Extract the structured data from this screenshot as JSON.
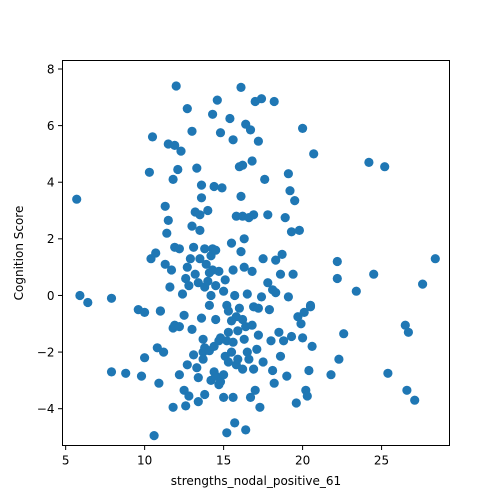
{
  "chart_data": {
    "type": "scatter",
    "title": "",
    "xlabel": "strengths_nodal_positive_61",
    "ylabel": "Cognition Score",
    "xlim": [
      4.8,
      29.3
    ],
    "ylim": [
      -5.3,
      8.3
    ],
    "x_ticks": [
      5,
      10,
      15,
      20,
      25
    ],
    "y_ticks": [
      -4,
      -2,
      0,
      2,
      4,
      6,
      8
    ],
    "grid": false,
    "legend": "none",
    "marker_color": "#1f77b4",
    "points": [
      [
        5.7,
        3.4
      ],
      [
        5.9,
        0.0
      ],
      [
        6.4,
        -0.25
      ],
      [
        7.9,
        -0.1
      ],
      [
        7.9,
        -2.7
      ],
      [
        8.8,
        -2.75
      ],
      [
        9.6,
        -0.5
      ],
      [
        9.8,
        -2.85
      ],
      [
        10.0,
        -0.6
      ],
      [
        10.0,
        -2.2
      ],
      [
        10.3,
        4.35
      ],
      [
        10.4,
        1.3
      ],
      [
        10.5,
        5.6
      ],
      [
        10.6,
        -4.95
      ],
      [
        10.7,
        1.5
      ],
      [
        10.8,
        -1.85
      ],
      [
        10.9,
        -3.1
      ],
      [
        11.0,
        -0.55
      ],
      [
        11.0,
        -0.55
      ],
      [
        11.2,
        -2.0
      ],
      [
        11.3,
        1.1
      ],
      [
        11.3,
        3.15
      ],
      [
        11.4,
        2.2
      ],
      [
        11.5,
        2.65
      ],
      [
        11.5,
        5.35
      ],
      [
        11.6,
        0.3
      ],
      [
        11.7,
        0.9
      ],
      [
        11.8,
        -1.15
      ],
      [
        11.8,
        4.1
      ],
      [
        11.8,
        -3.95
      ],
      [
        11.9,
        5.3
      ],
      [
        11.9,
        1.7
      ],
      [
        11.9,
        -1.05
      ],
      [
        12.0,
        7.4
      ],
      [
        12.1,
        4.45
      ],
      [
        12.2,
        1.65
      ],
      [
        12.2,
        -1.1
      ],
      [
        12.2,
        -2.8
      ],
      [
        12.3,
        5.1
      ],
      [
        12.4,
        0.05
      ],
      [
        12.5,
        -0.7
      ],
      [
        12.5,
        -3.35
      ],
      [
        12.6,
        -3.9
      ],
      [
        12.6,
        0.6
      ],
      [
        12.7,
        6.6
      ],
      [
        12.7,
        1.0
      ],
      [
        12.7,
        -2.45
      ],
      [
        12.8,
        0.35
      ],
      [
        12.8,
        -3.55
      ],
      [
        12.9,
        1.3
      ],
      [
        13.0,
        2.45
      ],
      [
        13.0,
        5.8
      ],
      [
        13.0,
        -1.2
      ],
      [
        13.1,
        1.7
      ],
      [
        13.1,
        -2.1
      ],
      [
        13.2,
        0.75
      ],
      [
        13.2,
        2.95
      ],
      [
        13.3,
        4.5
      ],
      [
        13.3,
        -2.55
      ],
      [
        13.4,
        -3.75
      ],
      [
        13.4,
        -2.9
      ],
      [
        13.4,
        0.45
      ],
      [
        13.5,
        2.3
      ],
      [
        13.5,
        2.85
      ],
      [
        13.5,
        1.3
      ],
      [
        13.6,
        3.9
      ],
      [
        13.6,
        3.45
      ],
      [
        13.6,
        -0.8
      ],
      [
        13.7,
        -1.55
      ],
      [
        13.7,
        -2.0
      ],
      [
        13.7,
        -2.25
      ],
      [
        13.8,
        1.65
      ],
      [
        13.8,
        0.3
      ],
      [
        13.8,
        -1.85
      ],
      [
        13.8,
        -3.5
      ],
      [
        13.9,
        1.1
      ],
      [
        14.0,
        0.5
      ],
      [
        14.0,
        3.0
      ],
      [
        14.1,
        0.8
      ],
      [
        14.1,
        -0.35
      ],
      [
        14.1,
        -1.95
      ],
      [
        14.2,
        1.4
      ],
      [
        14.2,
        0.0
      ],
      [
        14.2,
        -3.0
      ],
      [
        14.3,
        6.4
      ],
      [
        14.3,
        1.65
      ],
      [
        14.3,
        0.9
      ],
      [
        14.4,
        3.85
      ],
      [
        14.4,
        -2.7
      ],
      [
        14.4,
        -1.8
      ],
      [
        14.5,
        -0.85
      ],
      [
        14.5,
        -2.85
      ],
      [
        14.5,
        0.35
      ],
      [
        14.5,
        1.6
      ],
      [
        14.6,
        6.9
      ],
      [
        14.7,
        0.85
      ],
      [
        14.7,
        -1.6
      ],
      [
        14.7,
        -3.15
      ],
      [
        14.8,
        5.75
      ],
      [
        14.8,
        -1.5
      ],
      [
        14.8,
        -3.05
      ],
      [
        14.9,
        3.8
      ],
      [
        15.0,
        0.15
      ],
      [
        15.0,
        -2.8
      ],
      [
        15.0,
        -3.6
      ],
      [
        15.1,
        0.55
      ],
      [
        15.1,
        -2.15
      ],
      [
        15.2,
        -0.35
      ],
      [
        15.2,
        -1.6
      ],
      [
        15.2,
        -4.85
      ],
      [
        15.3,
        -0.55
      ],
      [
        15.3,
        -1.3
      ],
      [
        15.3,
        -2.35
      ],
      [
        15.4,
        6.25
      ],
      [
        15.5,
        1.85
      ],
      [
        15.5,
        -0.9
      ],
      [
        15.5,
        -2.0
      ],
      [
        15.6,
        5.5
      ],
      [
        15.6,
        0.9
      ],
      [
        15.6,
        -1.65
      ],
      [
        15.6,
        -3.6
      ],
      [
        15.7,
        -4.5
      ],
      [
        15.7,
        0.0
      ],
      [
        15.8,
        2.8
      ],
      [
        15.8,
        -0.75
      ],
      [
        15.8,
        -2.45
      ],
      [
        15.9,
        -1.25
      ],
      [
        15.9,
        -2.25
      ],
      [
        16.0,
        -0.45
      ],
      [
        16.0,
        4.55
      ],
      [
        16.1,
        3.5
      ],
      [
        16.1,
        7.35
      ],
      [
        16.1,
        1.55
      ],
      [
        16.2,
        2.8
      ],
      [
        16.2,
        4.6
      ],
      [
        16.2,
        -0.85
      ],
      [
        16.2,
        -2.6
      ],
      [
        16.3,
        2.0
      ],
      [
        16.3,
        1.0
      ],
      [
        16.3,
        -1.55
      ],
      [
        16.4,
        6.05
      ],
      [
        16.4,
        -1.1
      ],
      [
        16.4,
        -4.75
      ],
      [
        16.5,
        0.05
      ],
      [
        16.5,
        -2.0
      ],
      [
        16.6,
        2.75
      ],
      [
        16.6,
        -2.25
      ],
      [
        16.7,
        5.85
      ],
      [
        16.7,
        -3.6
      ],
      [
        16.8,
        4.75
      ],
      [
        16.8,
        0.85
      ],
      [
        16.8,
        -1.05
      ],
      [
        16.9,
        2.85
      ],
      [
        16.9,
        -0.4
      ],
      [
        16.9,
        -2.6
      ],
      [
        17.0,
        -3.35
      ],
      [
        17.0,
        6.85
      ],
      [
        17.1,
        -1.9
      ],
      [
        17.2,
        5.45
      ],
      [
        17.2,
        -0.45
      ],
      [
        17.2,
        -1.4
      ],
      [
        17.3,
        -3.95
      ],
      [
        17.4,
        6.95
      ],
      [
        17.4,
        -0.05
      ],
      [
        17.5,
        1.3
      ],
      [
        17.5,
        -2.35
      ],
      [
        17.6,
        4.1
      ],
      [
        17.8,
        2.85
      ],
      [
        17.8,
        0.45
      ],
      [
        17.9,
        -0.5
      ],
      [
        18.0,
        -1.6
      ],
      [
        18.1,
        0.2
      ],
      [
        18.1,
        -2.65
      ],
      [
        18.2,
        6.85
      ],
      [
        18.2,
        -3.1
      ],
      [
        18.3,
        1.25
      ],
      [
        18.3,
        0.1
      ],
      [
        18.5,
        -1.3
      ],
      [
        18.6,
        -2.15
      ],
      [
        18.6,
        0.75
      ],
      [
        18.7,
        1.45
      ],
      [
        18.8,
        -1.6
      ],
      [
        18.9,
        2.75
      ],
      [
        19.0,
        -2.85
      ],
      [
        19.1,
        4.3
      ],
      [
        19.1,
        -0.05
      ],
      [
        19.2,
        3.7
      ],
      [
        19.3,
        2.25
      ],
      [
        19.3,
        -1.45
      ],
      [
        19.4,
        0.75
      ],
      [
        19.5,
        3.35
      ],
      [
        19.6,
        -3.8
      ],
      [
        19.7,
        -0.75
      ],
      [
        19.8,
        2.3
      ],
      [
        19.9,
        -1.0
      ],
      [
        20.0,
        5.9
      ],
      [
        20.0,
        -1.5
      ],
      [
        20.1,
        -0.6
      ],
      [
        20.2,
        -3.35
      ],
      [
        20.3,
        -3.55
      ],
      [
        20.4,
        -2.65
      ],
      [
        20.5,
        -0.4
      ],
      [
        20.5,
        -0.35
      ],
      [
        20.6,
        -1.8
      ],
      [
        20.7,
        5.0
      ],
      [
        21.8,
        -2.8
      ],
      [
        22.2,
        1.2
      ],
      [
        22.2,
        0.6
      ],
      [
        22.3,
        -2.25
      ],
      [
        22.6,
        -1.35
      ],
      [
        23.4,
        0.15
      ],
      [
        24.2,
        4.7
      ],
      [
        24.5,
        0.75
      ],
      [
        25.2,
        4.55
      ],
      [
        25.4,
        -2.75
      ],
      [
        26.5,
        -1.05
      ],
      [
        26.6,
        -3.35
      ],
      [
        26.7,
        -1.3
      ],
      [
        27.1,
        -3.7
      ],
      [
        27.6,
        0.4
      ],
      [
        28.4,
        1.3
      ]
    ]
  }
}
